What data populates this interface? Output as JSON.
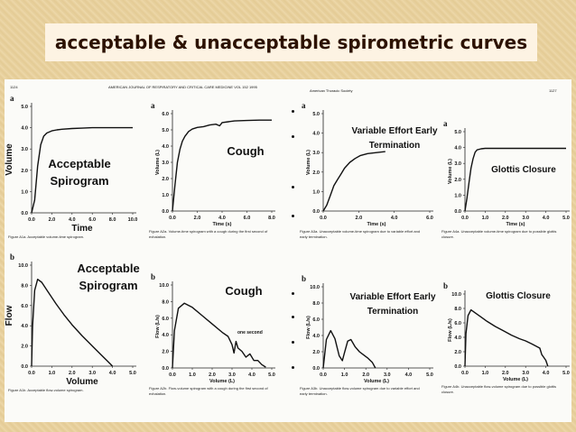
{
  "slide_title": "acceptable & unacceptable spirometric curves",
  "page": {
    "left_page_number": "1124",
    "left_header": "AMERICAN JOURNAL OF RESPIRATORY AND CRITICAL CARE MEDICINE VOL 152 1995",
    "right_header": "American Thoracic Society",
    "right_page_number": "1127"
  },
  "colors": {
    "slide_bg": "#e8d19e",
    "title_bg": "#fdf3e3",
    "title_text": "#2c1200",
    "curve": "#111111"
  },
  "chart_data": [
    {
      "id": "panel-1",
      "type": "line",
      "letter": "a",
      "annotation": "Acceptable Spirogram",
      "xlabel": "Time",
      "ylabel": "Volume",
      "xlim": [
        0,
        10
      ],
      "ylim": [
        0,
        5
      ],
      "x_ticks": [
        "0.0",
        "2.0",
        "4.0",
        "6.0",
        "8.0",
        "10.0"
      ],
      "y_ticks": [
        "0.0",
        "1.0",
        "2.0",
        "3.0",
        "4.0",
        "5.0"
      ],
      "caption": "Figure A1a. Acceptable volume-time spirogram.",
      "x": [
        0,
        0.3,
        0.6,
        0.9,
        1.2,
        1.5,
        2,
        2.5,
        3,
        4,
        5,
        6,
        7,
        8,
        9,
        10
      ],
      "y": [
        0,
        0.6,
        2.2,
        3.2,
        3.6,
        3.75,
        3.85,
        3.9,
        3.93,
        3.96,
        3.98,
        4.0,
        4.0,
        4.0,
        4.0,
        4.0
      ]
    },
    {
      "id": "panel-2",
      "type": "line",
      "letter": "a",
      "annotation": "Cough",
      "xlabel": "Time (s)",
      "ylabel": "Volume (L)",
      "xlim": [
        0,
        8
      ],
      "ylim": [
        0,
        6
      ],
      "x_ticks": [
        "0.0",
        "2.0",
        "4.0",
        "6.0",
        "8.0"
      ],
      "y_ticks": [
        "0.0",
        "1.0",
        "2.0",
        "3.0",
        "4.0",
        "5.0",
        "6.0"
      ],
      "caption": "Figure A2a. Volume-time spirogram with a cough during the first second of exhalation.",
      "x": [
        0,
        0.2,
        0.4,
        0.6,
        0.8,
        1,
        1.3,
        1.6,
        2,
        2.5,
        3,
        3.5,
        3.8,
        4,
        4.5,
        5,
        6,
        7,
        8
      ],
      "y": [
        0,
        1.6,
        3.0,
        3.8,
        4.3,
        4.6,
        4.9,
        5.05,
        5.15,
        5.2,
        5.3,
        5.35,
        5.25,
        5.45,
        5.5,
        5.55,
        5.58,
        5.6,
        5.6
      ]
    },
    {
      "id": "panel-3",
      "type": "line",
      "letter": "a",
      "annotation": "Variable Effort Early Termination",
      "xlabel": "Time (s)",
      "ylabel": "Volume (L)",
      "xlim": [
        0,
        6
      ],
      "ylim": [
        0,
        5
      ],
      "x_ticks": [
        "0.0",
        "2.0",
        "4.0",
        "6.0"
      ],
      "y_ticks": [
        "0.0",
        "1.0",
        "2.0",
        "3.0",
        "4.0",
        "5.0"
      ],
      "caption": "Figure A3a. Unacceptable volume-time spirogram due to variable effort and early termination.",
      "x": [
        0,
        0.2,
        0.4,
        0.6,
        0.8,
        1.0,
        1.2,
        1.5,
        1.8,
        2.1,
        2.5,
        3.0,
        3.5
      ],
      "y": [
        0,
        0.3,
        0.8,
        1.3,
        1.6,
        1.9,
        2.2,
        2.5,
        2.7,
        2.85,
        2.95,
        3.0,
        3.05
      ]
    },
    {
      "id": "panel-4",
      "type": "line",
      "letter": "a",
      "annotation": "Glottis Closure",
      "xlabel": "Time (s)",
      "ylabel": "Volume (L)",
      "xlim": [
        0,
        5
      ],
      "ylim": [
        0,
        5
      ],
      "x_ticks": [
        "0.0",
        "1.0",
        "2.0",
        "3.0",
        "4.0",
        "5.0"
      ],
      "y_ticks": [
        "0.0",
        "1.0",
        "2.0",
        "3.0",
        "4.0",
        "5.0"
      ],
      "caption": "Figure A4a. Unacceptable volume-time spirogram due to possible glottis closure.",
      "x": [
        0,
        0.1,
        0.2,
        0.3,
        0.4,
        0.5,
        0.6,
        0.8,
        1.0,
        1.5,
        2,
        3,
        4,
        5
      ],
      "y": [
        0,
        0.8,
        1.8,
        2.7,
        3.3,
        3.7,
        3.85,
        3.92,
        3.95,
        3.95,
        3.95,
        3.95,
        3.95,
        3.95
      ]
    },
    {
      "id": "panel-5",
      "type": "line",
      "letter": "b",
      "annotation": "Acceptable Spirogram",
      "xlabel": "Volume",
      "ylabel": "Flow",
      "xlim": [
        0,
        5
      ],
      "ylim": [
        0,
        10
      ],
      "x_ticks": [
        "0.0",
        "1.0",
        "2.0",
        "3.0",
        "4.0",
        "5.0"
      ],
      "y_ticks": [
        "0.0",
        "2.0",
        "4.0",
        "6.0",
        "8.0",
        "10.0"
      ],
      "caption": "Figure A1b. Acceptable flow-volume spirogram.",
      "x": [
        0,
        0.05,
        0.15,
        0.3,
        0.5,
        0.8,
        1.2,
        1.6,
        2.0,
        2.5,
        3.0,
        3.4,
        3.7,
        3.9,
        4.0
      ],
      "y": [
        0,
        4,
        7.5,
        8.6,
        8.3,
        7.4,
        6.2,
        5.1,
        4.1,
        3.0,
        2.0,
        1.2,
        0.6,
        0.2,
        0
      ]
    },
    {
      "id": "panel-6",
      "type": "line",
      "letter": "b",
      "annotation": "Cough",
      "secondary_annotation": "one second",
      "xlabel": "Volume (L)",
      "ylabel": "Flow (L/s)",
      "xlim": [
        0,
        5
      ],
      "ylim": [
        0,
        10
      ],
      "x_ticks": [
        "0.0",
        "1.0",
        "2.0",
        "3.0",
        "4.0",
        "5.0"
      ],
      "y_ticks": [
        "0.0",
        "2.0",
        "4.0",
        "6.0",
        "8.0",
        "10.0"
      ],
      "caption": "Figure A2b. Flow-volume spirogram with a cough during the first second of exhalation.",
      "x": [
        0,
        0.1,
        0.3,
        0.6,
        1.0,
        1.5,
        2.0,
        2.5,
        2.8,
        3.0,
        3.1,
        3.2,
        3.3,
        3.5,
        3.7,
        3.9,
        4.1,
        4.3,
        4.5,
        4.7
      ],
      "y": [
        0,
        4.5,
        7.2,
        7.8,
        7.3,
        6.3,
        5.3,
        4.3,
        3.8,
        2.8,
        1.8,
        3.2,
        2.4,
        2.0,
        1.3,
        1.7,
        0.9,
        0.9,
        0.4,
        0.1
      ]
    },
    {
      "id": "panel-7",
      "type": "line",
      "letter": "b",
      "annotation": "Variable Effort Early Termination",
      "xlabel": "Volume (L)",
      "ylabel": "Flow (L/s)",
      "xlim": [
        0,
        5
      ],
      "ylim": [
        0,
        10
      ],
      "x_ticks": [
        "0.0",
        "1.0",
        "2.0",
        "3.0",
        "4.0",
        "5.0"
      ],
      "y_ticks": [
        "0.0",
        "2.0",
        "4.0",
        "6.0",
        "8.0",
        "10.0"
      ],
      "caption": "Figure A3b. Unacceptable flow-volume spirogram due to variable effort and early termination.",
      "x": [
        0,
        0.15,
        0.35,
        0.55,
        0.75,
        0.9,
        1.0,
        1.15,
        1.3,
        1.5,
        1.7,
        1.9,
        2.1,
        2.3,
        2.45
      ],
      "y": [
        0,
        3.5,
        4.6,
        3.6,
        1.5,
        0.9,
        1.9,
        3.3,
        3.5,
        2.6,
        2.0,
        1.6,
        1.2,
        0.7,
        0
      ]
    },
    {
      "id": "panel-8",
      "type": "line",
      "letter": "b",
      "annotation": "Glottis Closure",
      "xlabel": "Volume (L)",
      "ylabel": "Flow (L/s)",
      "xlim": [
        0,
        5
      ],
      "ylim": [
        0,
        10
      ],
      "x_ticks": [
        "0.0",
        "1.0",
        "2.0",
        "3.0",
        "4.0",
        "5.0"
      ],
      "y_ticks": [
        "0.0",
        "2.0",
        "4.0",
        "6.0",
        "8.0",
        "10.0"
      ],
      "caption": "Figure A4b. Unacceptable flow-volume spirogram due to possible glottis closure.",
      "x": [
        0,
        0.05,
        0.15,
        0.3,
        0.5,
        0.8,
        1.1,
        1.5,
        1.9,
        2.3,
        2.7,
        3.0,
        3.3,
        3.5,
        3.7,
        3.8,
        3.9,
        4.0,
        4.1
      ],
      "y": [
        0,
        4.5,
        7.0,
        7.8,
        7.4,
        6.8,
        6.2,
        5.5,
        4.9,
        4.3,
        3.8,
        3.5,
        3.1,
        2.8,
        2.5,
        1.6,
        1.2,
        0.8,
        0
      ]
    }
  ]
}
